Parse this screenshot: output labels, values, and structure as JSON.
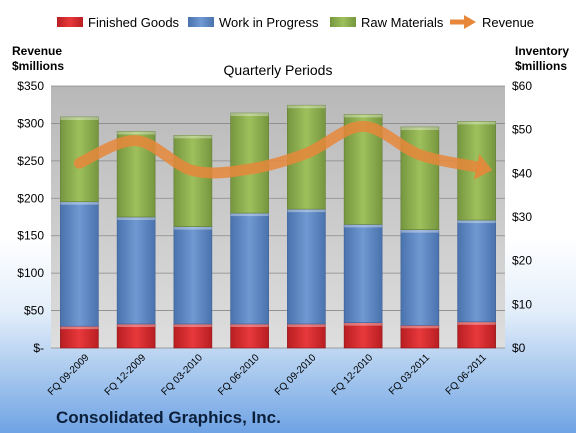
{
  "chart_data": {
    "type": "bar",
    "stacked": true,
    "title": "Quarterly Periods",
    "footer": "Consolidated Graphics, Inc.",
    "categories": [
      "FQ 09-2009",
      "FQ 12-2009",
      "FQ 03-2010",
      "FQ 06-2010",
      "FQ 09-2010",
      "FQ 12-2010",
      "FQ 03-2011",
      "FQ 06-2011"
    ],
    "left_axis": {
      "label": "Revenue\n$millions",
      "ylim": [
        0,
        350
      ],
      "ticks": [
        "$-",
        "$50",
        "$100",
        "$150",
        "$200",
        "$250",
        "$300",
        "$350"
      ]
    },
    "right_axis": {
      "label": "Inventory\n$millions",
      "ylim": [
        0,
        60
      ],
      "ticks": [
        "$0",
        "$10",
        "$20",
        "$30",
        "$40",
        "$50",
        "$60"
      ]
    },
    "series": [
      {
        "name": "Finished Goods",
        "axis": "right",
        "color": "#d9262a",
        "values": [
          5.0,
          5.5,
          5.5,
          5.5,
          5.5,
          5.8,
          5.2,
          6.0
        ]
      },
      {
        "name": "Work in Progress",
        "axis": "right",
        "color": "#5b86c4",
        "values": [
          28.5,
          24.5,
          22.3,
          25.4,
          26.3,
          22.5,
          21.9,
          23.3
        ]
      },
      {
        "name": "Raw Materials",
        "axis": "right",
        "color": "#8db051",
        "values": [
          19.4,
          19.6,
          20.9,
          22.9,
          23.8,
          25.2,
          23.5,
          22.6
        ]
      },
      {
        "name": "Revenue",
        "axis": "left",
        "type": "line",
        "color": "#e6873a",
        "values": [
          247,
          277,
          237,
          239,
          260,
          296,
          258,
          242
        ]
      }
    ],
    "grid": true,
    "legend": "top"
  }
}
